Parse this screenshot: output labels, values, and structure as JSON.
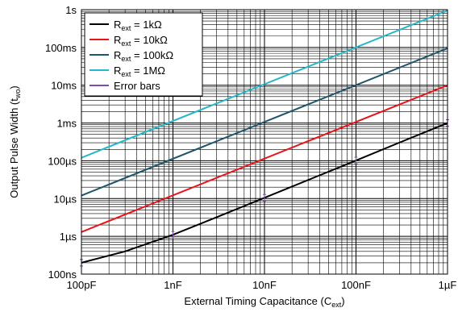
{
  "chart_data": {
    "type": "line",
    "x_scale": "log",
    "y_scale": "log",
    "xlim": [
      1e-10,
      1e-06
    ],
    "ylim": [
      1e-07,
      1
    ],
    "grid": true,
    "legend_position": "top-left",
    "xlabel": {
      "text": "External Timing Capacitance (C",
      "sub": "ext",
      "close": ")"
    },
    "ylabel": {
      "text": "Output Pulse Width (t",
      "sub": "wo",
      "close": ")"
    },
    "x_ticks": [
      {
        "value": 1e-10,
        "label": "100pF"
      },
      {
        "value": 1e-09,
        "label": "1nF"
      },
      {
        "value": 1e-08,
        "label": "10nF"
      },
      {
        "value": 1e-07,
        "label": "100nF"
      },
      {
        "value": 1e-06,
        "label": "1µF"
      }
    ],
    "y_ticks": [
      {
        "value": 1e-07,
        "label": "100ns"
      },
      {
        "value": 1e-06,
        "label": "1µs"
      },
      {
        "value": 1e-05,
        "label": "10µs"
      },
      {
        "value": 0.0001,
        "label": "100µs"
      },
      {
        "value": 0.001,
        "label": "1ms"
      },
      {
        "value": 0.01,
        "label": "10ms"
      },
      {
        "value": 0.1,
        "label": "100ms"
      },
      {
        "value": 1,
        "label": "1s"
      }
    ],
    "series": [
      {
        "name": "R",
        "sub": "ext",
        "suffix": " = 1kΩ",
        "color": "#000000",
        "x": [
          1e-10,
          3e-10,
          1e-09,
          3e-09,
          1e-08,
          3e-08,
          1e-07,
          3e-07,
          1e-06
        ],
        "y": [
          2e-07,
          4e-07,
          1.1e-06,
          3.2e-06,
          1.05e-05,
          3.1e-05,
          0.000102,
          0.000305,
          0.001
        ]
      },
      {
        "name": "R",
        "sub": "ext",
        "suffix": " = 10kΩ",
        "color": "#e8141b",
        "x": [
          1e-10,
          1e-06
        ],
        "y": [
          1.3e-06,
          0.01
        ]
      },
      {
        "name": "R",
        "sub": "ext",
        "suffix": " = 100kΩ",
        "color": "#1f5669",
        "x": [
          1e-10,
          1e-06
        ],
        "y": [
          1.2e-05,
          0.095
        ]
      },
      {
        "name": "R",
        "sub": "ext",
        "suffix": " = 1MΩ",
        "color": "#25b8c8",
        "x": [
          1e-10,
          1e-06
        ],
        "y": [
          0.00012,
          0.95
        ]
      },
      {
        "name": "Error bars",
        "sub": "",
        "suffix": "",
        "color": "#7b4fb0",
        "x": [
          1e-10,
          1e-09,
          1e-08,
          1e-07,
          1e-06
        ],
        "y": [
          2e-07,
          1.1e-06,
          1.05e-05,
          0.000102,
          0.001
        ]
      }
    ]
  }
}
